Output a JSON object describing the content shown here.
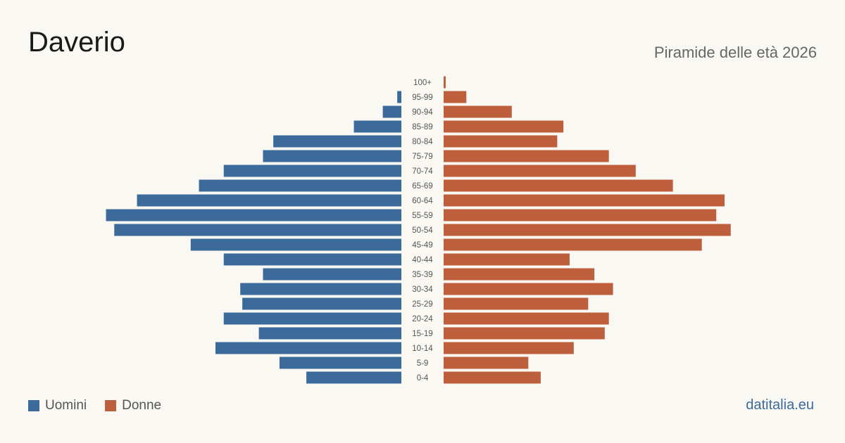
{
  "header": {
    "title": "Daverio",
    "subtitle": "Piramide delle età 2026"
  },
  "legend": {
    "men_label": "Uomini",
    "women_label": "Donne"
  },
  "footer": {
    "brand": "datitalia.eu"
  },
  "colors": {
    "men": "#3c6a9a",
    "women": "#bd5e3c",
    "background": "#faf8f3"
  },
  "chart_data": {
    "type": "bar",
    "orientation": "horizontal-pyramid",
    "categories": [
      "100+",
      "95-99",
      "90-94",
      "85-89",
      "80-84",
      "75-79",
      "70-74",
      "65-69",
      "60-64",
      "55-59",
      "50-54",
      "45-49",
      "40-44",
      "35-39",
      "30-34",
      "25-29",
      "20-24",
      "15-19",
      "10-14",
      "5-9",
      "0-4"
    ],
    "series": [
      {
        "name": "Uomini",
        "values": [
          0,
          1,
          4.5,
          11.5,
          31,
          33.5,
          43,
          49,
          64,
          71.5,
          69.5,
          51,
          43,
          33.5,
          39,
          38.5,
          43,
          34.5,
          45,
          29.5,
          23
        ]
      },
      {
        "name": "Donne",
        "values": [
          0.5,
          5.5,
          16.5,
          29,
          27.5,
          40,
          46.5,
          55.5,
          68,
          66,
          69.5,
          62.5,
          30.5,
          36.5,
          41,
          35,
          40,
          39,
          31.5,
          20.5,
          23.5
        ]
      }
    ],
    "xlim": [
      0,
      75
    ],
    "grid": false,
    "legend_position": "bottom-left"
  }
}
